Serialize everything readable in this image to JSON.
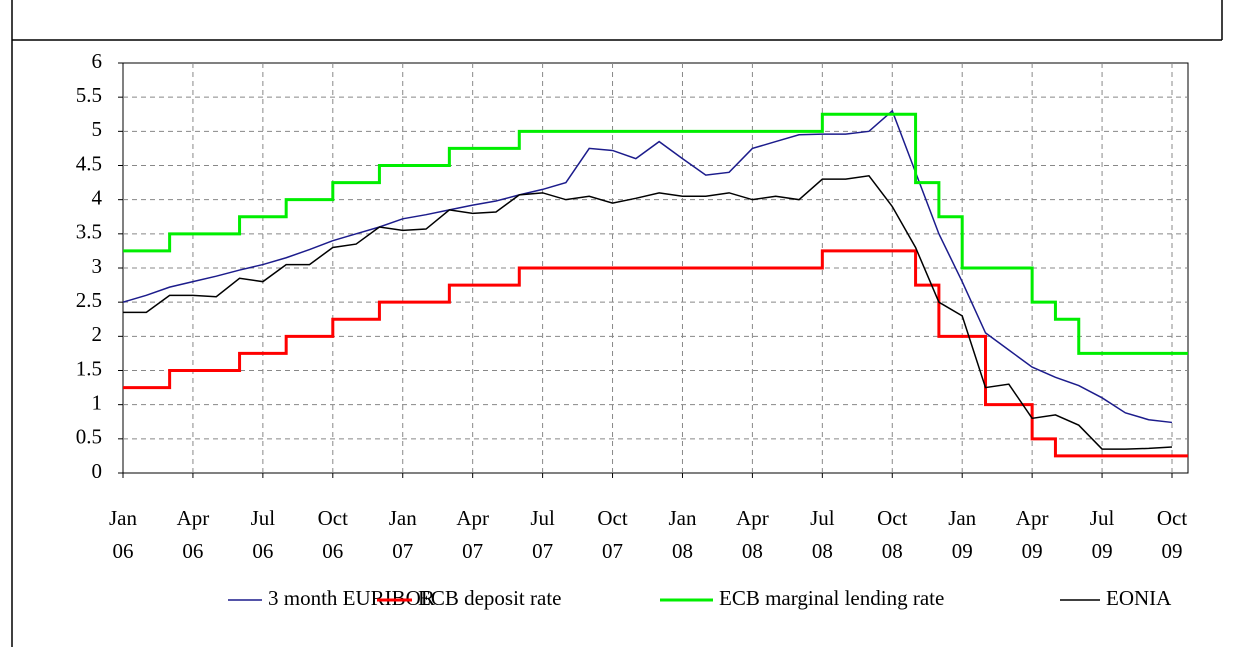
{
  "chart_data": {
    "type": "line",
    "categories": [
      "Jan 06",
      null,
      null,
      "Apr 06",
      null,
      null,
      "Jul 06",
      null,
      null,
      "Oct 06",
      null,
      null,
      "Jan 07",
      null,
      null,
      "Apr 07",
      null,
      null,
      "Jul 07",
      null,
      null,
      "Oct 07",
      null,
      null,
      "Jan 08",
      null,
      null,
      "Apr 08",
      null,
      null,
      "Jul 08",
      null,
      null,
      "Oct 08",
      null,
      null,
      "Jan 09",
      null,
      null,
      "Apr 09",
      null,
      null,
      "Jul 09",
      null,
      null,
      "Oct 09"
    ],
    "series": [
      {
        "name": "3 month EURIBOR",
        "color": "#1c1c8c",
        "step": false,
        "values": [
          2.5,
          2.6,
          2.72,
          2.8,
          2.88,
          2.97,
          3.05,
          3.15,
          3.27,
          3.4,
          3.5,
          3.6,
          3.72,
          3.78,
          3.85,
          3.92,
          3.98,
          4.07,
          4.15,
          4.25,
          4.75,
          4.72,
          4.6,
          4.85,
          4.6,
          4.36,
          4.4,
          4.75,
          4.85,
          4.95,
          4.96,
          4.96,
          5.0,
          5.3,
          4.4,
          3.5,
          2.8,
          2.05,
          1.8,
          1.55,
          1.4,
          1.28,
          1.1,
          0.88,
          0.78,
          0.74
        ]
      },
      {
        "name": "ECB deposit rate",
        "color": "#ff0000",
        "step": true,
        "values": [
          1.25,
          1.25,
          1.5,
          1.5,
          1.5,
          1.75,
          1.75,
          2.0,
          2.0,
          2.25,
          2.25,
          2.5,
          2.5,
          2.5,
          2.75,
          2.75,
          2.75,
          3.0,
          3.0,
          3.0,
          3.0,
          3.0,
          3.0,
          3.0,
          3.0,
          3.0,
          3.0,
          3.0,
          3.0,
          3.0,
          3.25,
          3.25,
          3.25,
          3.25,
          2.75,
          2.0,
          2.0,
          1.0,
          1.0,
          0.5,
          0.25,
          0.25,
          0.25,
          0.25,
          0.25,
          0.25
        ]
      },
      {
        "name": "ECB marginal lending rate",
        "color": "#00ee00",
        "step": true,
        "values": [
          3.25,
          3.25,
          3.5,
          3.5,
          3.5,
          3.75,
          3.75,
          4.0,
          4.0,
          4.25,
          4.25,
          4.5,
          4.5,
          4.5,
          4.75,
          4.75,
          4.75,
          5.0,
          5.0,
          5.0,
          5.0,
          5.0,
          5.0,
          5.0,
          5.0,
          5.0,
          5.0,
          5.0,
          5.0,
          5.0,
          5.25,
          5.25,
          5.25,
          5.25,
          4.25,
          3.75,
          3.0,
          3.0,
          3.0,
          2.5,
          2.25,
          1.75,
          1.75,
          1.75,
          1.75,
          1.75
        ]
      },
      {
        "name": "EONIA",
        "color": "#000000",
        "step": false,
        "values": [
          2.35,
          2.35,
          2.6,
          2.6,
          2.58,
          2.85,
          2.8,
          3.05,
          3.05,
          3.3,
          3.35,
          3.6,
          3.55,
          3.57,
          3.85,
          3.8,
          3.82,
          4.07,
          4.1,
          4.0,
          4.05,
          3.95,
          4.02,
          4.1,
          4.05,
          4.05,
          4.1,
          4.0,
          4.05,
          4.0,
          4.3,
          4.3,
          4.35,
          3.9,
          3.3,
          2.5,
          2.3,
          1.25,
          1.3,
          0.8,
          0.85,
          0.7,
          0.35,
          0.35,
          0.36,
          0.38
        ]
      }
    ],
    "ylim": [
      0,
      6
    ],
    "yticks": [
      0,
      0.5,
      1,
      1.5,
      2,
      2.5,
      3,
      3.5,
      4,
      4.5,
      5,
      5.5,
      6
    ],
    "grid": true,
    "legend": "bottom"
  }
}
